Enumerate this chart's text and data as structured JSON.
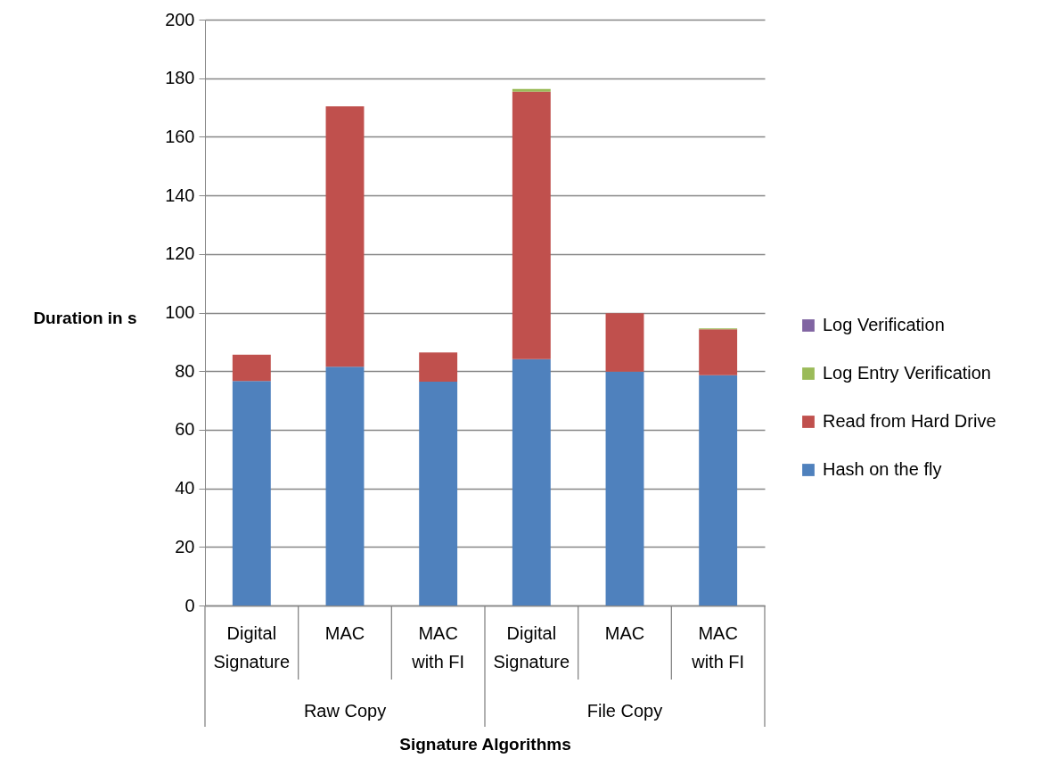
{
  "chart_data": {
    "type": "bar",
    "stacked": true,
    "xlabel": "Signature Algorithms",
    "ylabel": "Duration in s",
    "categories": [
      "Digital Signature",
      "MAC",
      "MAC with FI",
      "Digital Signature",
      "MAC",
      "MAC with FI"
    ],
    "annotations": [
      "Raw Copy",
      "File Copy"
    ],
    "series": [
      {
        "name": "Hash on the fly",
        "color": "#4f81bd",
        "values": [
          76.6,
          81.5,
          76.4,
          84.1,
          79.8,
          78.6
        ]
      },
      {
        "name": "Read from Hard Drive",
        "color": "#c0504d",
        "values": [
          9.0,
          88.9,
          10.0,
          91.3,
          20.0,
          15.7
        ]
      },
      {
        "name": "Log Entry Verification",
        "color": "#9bbb59",
        "values": [
          null,
          null,
          null,
          0.9,
          null,
          0.3
        ]
      },
      {
        "name": "Log Verification",
        "color": "#8064a2",
        "values": [
          null,
          null,
          null,
          null,
          null,
          null
        ]
      }
    ],
    "ylim": [
      0,
      200
    ],
    "yticks": [
      0,
      20,
      40,
      60,
      80,
      100,
      120,
      140,
      160,
      180,
      200
    ],
    "grid": "y",
    "legend": "right"
  }
}
